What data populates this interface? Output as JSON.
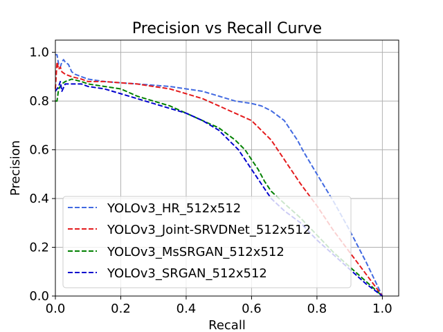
{
  "chart_data": {
    "type": "line",
    "title": "Precision vs Recall Curve",
    "xlabel": "Recall",
    "ylabel": "Precision",
    "xlim": [
      0,
      1.05
    ],
    "ylim": [
      0,
      1.05
    ],
    "grid": true,
    "legend_position": "lower-left",
    "xticks": [
      0.0,
      0.2,
      0.4,
      0.6,
      0.8,
      1.0
    ],
    "yticks": [
      0.0,
      0.2,
      0.4,
      0.6,
      0.8,
      1.0
    ],
    "xtick_labels": [
      "0.0",
      "0.2",
      "0.4",
      "0.6",
      "0.8",
      "1.0"
    ],
    "ytick_labels": [
      "0.0",
      "0.2",
      "0.4",
      "0.6",
      "0.8",
      "1.0"
    ],
    "series": [
      {
        "name": "YOLOv3_HR_512x512",
        "color": "#4169e1",
        "x": [
          0.0,
          0.005,
          0.01,
          0.015,
          0.02,
          0.025,
          0.03,
          0.04,
          0.05,
          0.06,
          0.08,
          0.1,
          0.15,
          0.2,
          0.25,
          0.3,
          0.35,
          0.4,
          0.45,
          0.5,
          0.55,
          0.6,
          0.63,
          0.66,
          0.7,
          0.72,
          0.74,
          0.76,
          0.8,
          0.85,
          0.9,
          0.95,
          1.0
        ],
        "y": [
          0.99,
          0.99,
          0.95,
          0.94,
          0.96,
          0.97,
          0.96,
          0.95,
          0.92,
          0.91,
          0.9,
          0.89,
          0.88,
          0.875,
          0.87,
          0.865,
          0.86,
          0.85,
          0.84,
          0.82,
          0.8,
          0.79,
          0.78,
          0.76,
          0.72,
          0.68,
          0.64,
          0.59,
          0.5,
          0.39,
          0.27,
          0.14,
          0.0
        ]
      },
      {
        "name": "YOLOv3_Joint-SRVDNet_512x512",
        "color": "#e41a1c",
        "x": [
          0.0,
          0.005,
          0.01,
          0.015,
          0.02,
          0.03,
          0.05,
          0.08,
          0.1,
          0.15,
          0.2,
          0.25,
          0.3,
          0.35,
          0.4,
          0.45,
          0.5,
          0.55,
          0.6,
          0.63,
          0.66,
          0.7,
          0.75,
          0.8,
          0.85,
          0.9,
          0.95,
          1.0
        ],
        "y": [
          0.85,
          0.96,
          0.93,
          0.94,
          0.92,
          0.91,
          0.9,
          0.89,
          0.88,
          0.88,
          0.875,
          0.87,
          0.86,
          0.85,
          0.83,
          0.81,
          0.78,
          0.75,
          0.72,
          0.68,
          0.64,
          0.56,
          0.46,
          0.37,
          0.27,
          0.18,
          0.09,
          0.0
        ]
      },
      {
        "name": "YOLOv3_MsSRGAN_512x512",
        "color": "#008000",
        "x": [
          0.0,
          0.005,
          0.01,
          0.015,
          0.02,
          0.03,
          0.05,
          0.08,
          0.1,
          0.15,
          0.2,
          0.25,
          0.3,
          0.35,
          0.4,
          0.45,
          0.5,
          0.55,
          0.58,
          0.6,
          0.62,
          0.64,
          0.66,
          0.7,
          0.75,
          0.8,
          0.85,
          0.9,
          0.95,
          1.0
        ],
        "y": [
          0.8,
          0.8,
          0.85,
          0.86,
          0.87,
          0.88,
          0.89,
          0.88,
          0.87,
          0.86,
          0.85,
          0.82,
          0.8,
          0.78,
          0.75,
          0.72,
          0.69,
          0.64,
          0.6,
          0.56,
          0.52,
          0.47,
          0.43,
          0.38,
          0.32,
          0.25,
          0.18,
          0.12,
          0.06,
          0.0
        ]
      },
      {
        "name": "YOLOv3_SRGAN_512x512",
        "color": "#0000cd",
        "x": [
          0.0,
          0.005,
          0.01,
          0.015,
          0.02,
          0.03,
          0.05,
          0.08,
          0.1,
          0.15,
          0.2,
          0.25,
          0.3,
          0.35,
          0.4,
          0.45,
          0.5,
          0.53,
          0.56,
          0.58,
          0.6,
          0.62,
          0.64,
          0.66,
          0.7,
          0.75,
          0.8,
          0.85,
          0.9,
          0.95,
          1.0
        ],
        "y": [
          0.84,
          0.85,
          0.86,
          0.88,
          0.84,
          0.87,
          0.87,
          0.87,
          0.86,
          0.85,
          0.83,
          0.81,
          0.79,
          0.77,
          0.75,
          0.72,
          0.68,
          0.64,
          0.6,
          0.56,
          0.52,
          0.48,
          0.44,
          0.4,
          0.35,
          0.3,
          0.23,
          0.17,
          0.11,
          0.05,
          0.0
        ]
      }
    ]
  }
}
